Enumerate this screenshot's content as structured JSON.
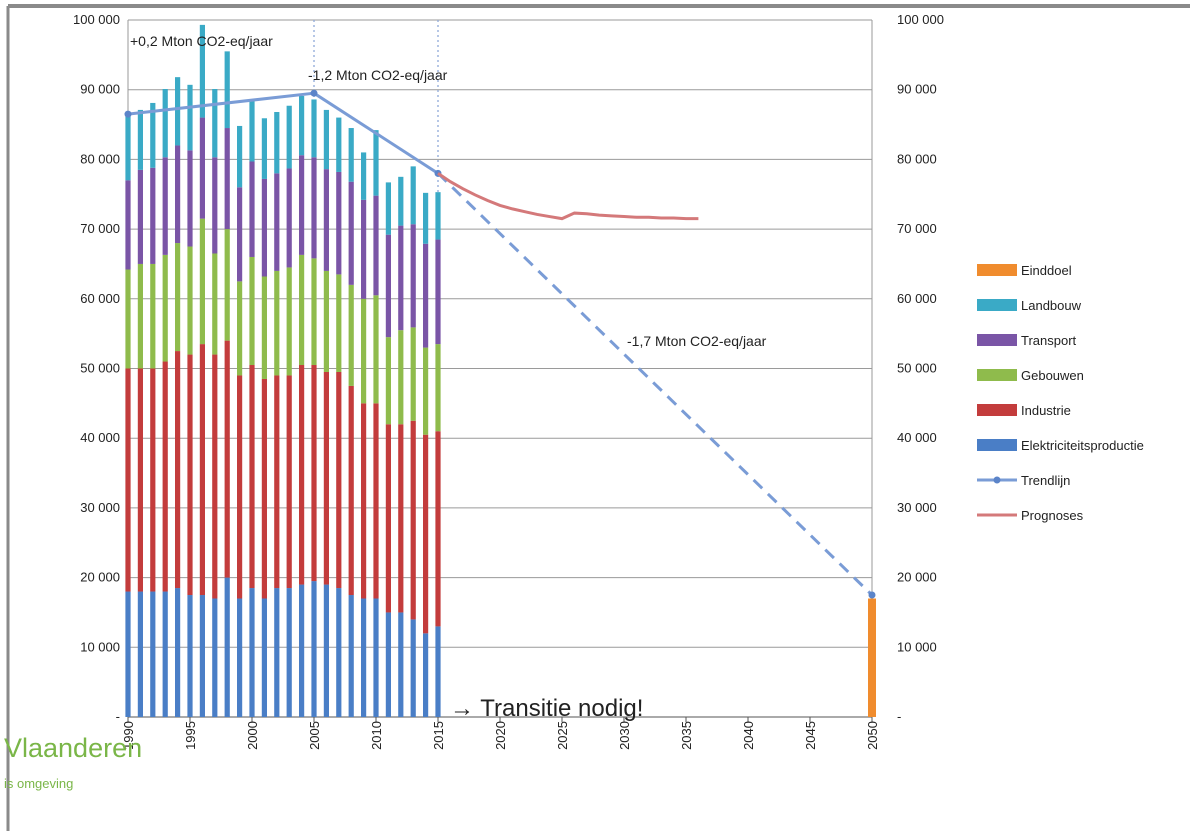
{
  "chart_data": {
    "type": "bar",
    "stacked": true,
    "x": [
      1990,
      1991,
      1992,
      1993,
      1994,
      1995,
      1996,
      1997,
      1998,
      1999,
      2000,
      2001,
      2002,
      2003,
      2004,
      2005,
      2006,
      2007,
      2008,
      2009,
      2010,
      2011,
      2012,
      2013,
      2014,
      2015
    ],
    "x_ticks": [
      "1990",
      "1995",
      "2000",
      "2005",
      "2010",
      "2015",
      "2020",
      "2025",
      "2030",
      "2035",
      "2040",
      "2045",
      "2050"
    ],
    "xlim": [
      1990,
      2050
    ],
    "y_ticks": [
      "-",
      "10 000",
      "20 000",
      "30 000",
      "40 000",
      "50 000",
      "60 000",
      "70 000",
      "80 000",
      "90 000",
      "100 000"
    ],
    "ylim": [
      0,
      100000
    ],
    "grid": true,
    "legend_position": "right",
    "series": [
      {
        "name": "Einddoel",
        "color": "#f08c2e",
        "x": [
          2050
        ],
        "values": [
          17000
        ]
      },
      {
        "name": "Landbouw",
        "color": "#3aaac6",
        "values": [
          9500,
          8600,
          9300,
          9800,
          9800,
          9400,
          13300,
          9800,
          11000,
          8800,
          8700,
          8700,
          8800,
          9000,
          8500,
          8300,
          8500,
          7800,
          7700,
          6800,
          9400,
          7500,
          7000,
          8300,
          7300,
          6800
        ]
      },
      {
        "name": "Transport",
        "color": "#7a55a6",
        "values": [
          12800,
          13500,
          13800,
          14000,
          14000,
          13800,
          14500,
          13800,
          14500,
          13500,
          13700,
          14000,
          14000,
          14200,
          14300,
          14500,
          14600,
          14700,
          14800,
          14200,
          14300,
          14700,
          15000,
          14800,
          14900,
          15000
        ]
      },
      {
        "name": "Gebouwen",
        "color": "#8fbb4c",
        "values": [
          14200,
          15000,
          15000,
          15300,
          15500,
          15500,
          18000,
          14500,
          16000,
          13500,
          15500,
          14700,
          15000,
          15500,
          15800,
          15300,
          14500,
          14000,
          14500,
          15000,
          15500,
          12500,
          13500,
          13400,
          12500,
          12500
        ]
      },
      {
        "name": "Industrie",
        "color": "#c33c3c",
        "values": [
          32000,
          32000,
          32000,
          33000,
          34000,
          34500,
          36000,
          35000,
          34000,
          32000,
          32000,
          31500,
          30500,
          30500,
          31500,
          31000,
          30500,
          31000,
          30000,
          28000,
          28000,
          27000,
          27000,
          28500,
          28500,
          28000
        ]
      },
      {
        "name": "Elektriciteitsproductie",
        "color": "#4a7ec6",
        "values": [
          18000,
          18000,
          18000,
          18000,
          18500,
          17500,
          17500,
          17000,
          20000,
          17000,
          18500,
          17000,
          18500,
          18500,
          19000,
          19500,
          19000,
          18500,
          17500,
          17000,
          17000,
          15000,
          15000,
          14000,
          12000,
          13000
        ]
      }
    ],
    "lines": [
      {
        "name": "Trendlijn",
        "color": "#7a9cd6",
        "x": [
          1990,
          2005,
          2015,
          2050
        ],
        "y": [
          86500,
          89500,
          78000,
          17500
        ],
        "dashed_after": 2015
      },
      {
        "name": "Prognoses",
        "color": "#d4797a",
        "x": [
          2015,
          2016,
          2017,
          2018,
          2019,
          2020,
          2021,
          2022,
          2023,
          2024,
          2025,
          2026,
          2027,
          2028,
          2029,
          2030,
          2031,
          2032,
          2033,
          2034,
          2035,
          2036
        ],
        "y": [
          78000,
          76800,
          75800,
          74900,
          74100,
          73400,
          72900,
          72500,
          72100,
          71800,
          71500,
          72300,
          72200,
          72000,
          71900,
          71800,
          71700,
          71700,
          71600,
          71600,
          71500,
          71500
        ]
      }
    ],
    "reference_lines_x": [
      2005,
      2015
    ],
    "annotations": [
      "+0,2 Mton CO2-eq/jaar",
      "-1,2 Mton CO2-eq/jaar",
      "-1,7 Mton CO2-eq/jaar",
      "→ Transitie nodig!"
    ]
  },
  "logo": {
    "name": "Vlaanderen",
    "subtitle": "is omgeving"
  },
  "colors": {
    "grid": "#9a9a9a",
    "frame": "#9a9a9a",
    "logo": "#7ab648"
  }
}
